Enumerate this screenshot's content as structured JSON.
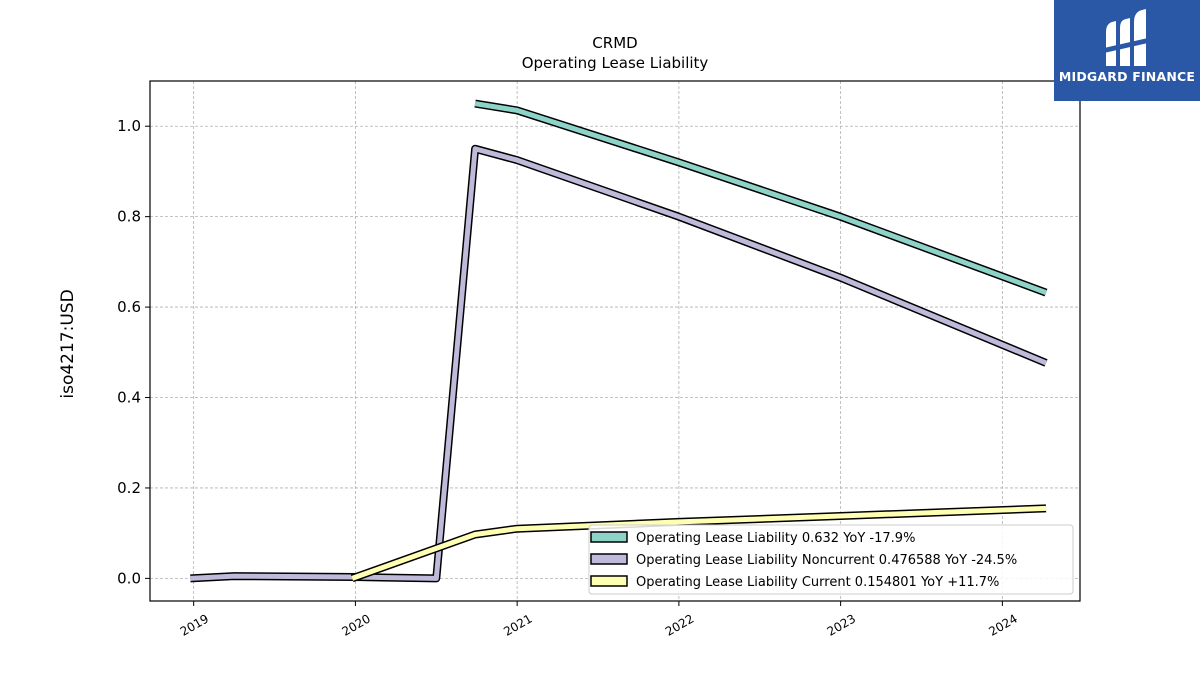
{
  "chart_data": {
    "type": "line",
    "title": "CRMD",
    "subtitle": "Operating Lease Liability",
    "xlabel": "",
    "ylabel": "iso4217:USD",
    "xlim": [
      2018.73,
      2024.48
    ],
    "ylim": [
      -0.05,
      1.1
    ],
    "x_ticks": [
      2019,
      2020,
      2021,
      2022,
      2023,
      2024
    ],
    "y_ticks": [
      0.0,
      0.2,
      0.4,
      0.6,
      0.8,
      1.0
    ],
    "y_tick_labels": [
      "0.0",
      "0.2",
      "0.4",
      "0.6",
      "0.8",
      "1.0"
    ],
    "grid": true,
    "legend_position": "lower-right",
    "series": [
      {
        "name": "Operating Lease Liability  0.632 YoY -17.9%",
        "color": "#8dd3c7",
        "x": [
          2020.74,
          2021.0,
          2022.0,
          2023.0,
          2024.27
        ],
        "y": [
          1.05,
          1.035,
          0.92,
          0.8,
          0.632
        ]
      },
      {
        "name": "Operating Lease Liability Noncurrent  0.476588 YoY -24.5%",
        "color": "#bebada",
        "x": [
          2018.98,
          2019.25,
          2020.0,
          2020.5,
          2020.74,
          2021.0,
          2022.0,
          2023.0,
          2024.27
        ],
        "y": [
          0.0,
          0.005,
          0.003,
          0.0,
          0.95,
          0.925,
          0.8,
          0.665,
          0.4766
        ]
      },
      {
        "name": "Operating Lease Liability Current  0.154801 YoY +11.7%",
        "color": "#ffffb3",
        "x": [
          2019.98,
          2020.74,
          2021.0,
          2022.0,
          2023.0,
          2024.27
        ],
        "y": [
          0.0,
          0.097,
          0.11,
          0.125,
          0.138,
          0.1548
        ]
      }
    ]
  },
  "logo": {
    "text": "MIDGARD FINANCE"
  }
}
